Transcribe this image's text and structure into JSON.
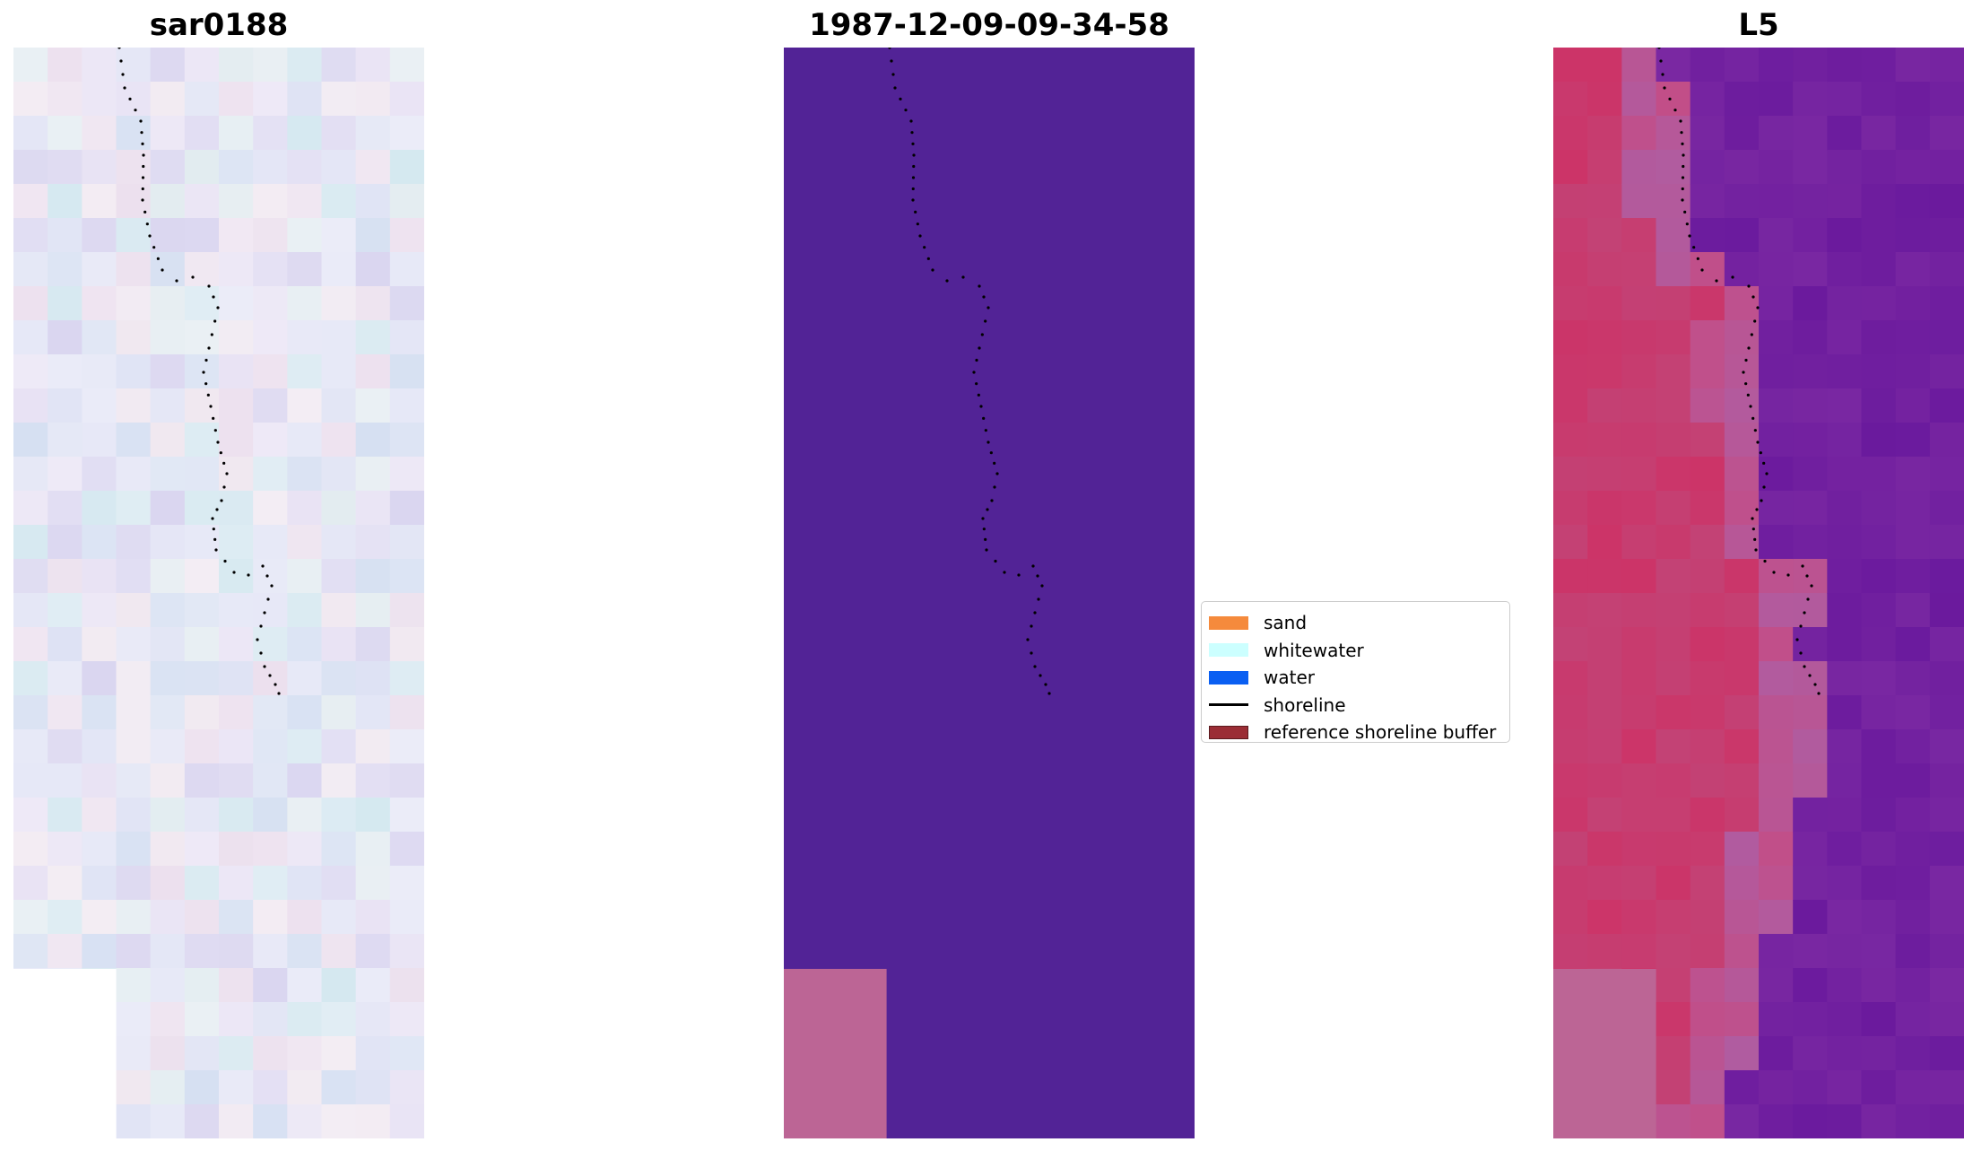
{
  "panels": [
    {
      "title": "sar0188"
    },
    {
      "title": "1987-12-09-09-34-58"
    },
    {
      "title": "L5"
    }
  ],
  "legend": {
    "items": [
      {
        "label": "sand",
        "color": "#f58a3c",
        "kind": "patch"
      },
      {
        "label": "whitewater",
        "color": "#ccffff",
        "kind": "patch"
      },
      {
        "label": "water",
        "color": "#0a5ff2",
        "kind": "patch"
      },
      {
        "label": "shoreline",
        "color": "#000000",
        "kind": "line"
      },
      {
        "label": "reference shoreline buffer",
        "color": "#9b2d35",
        "kind": "patch",
        "edge": "#5a1a1e"
      }
    ]
  },
  "colors": {
    "classified_background": "#522396",
    "nodata_block": "#bc6595",
    "l5_sand_side": "#c8386b",
    "l5_water_side": "#7b2aa0"
  }
}
